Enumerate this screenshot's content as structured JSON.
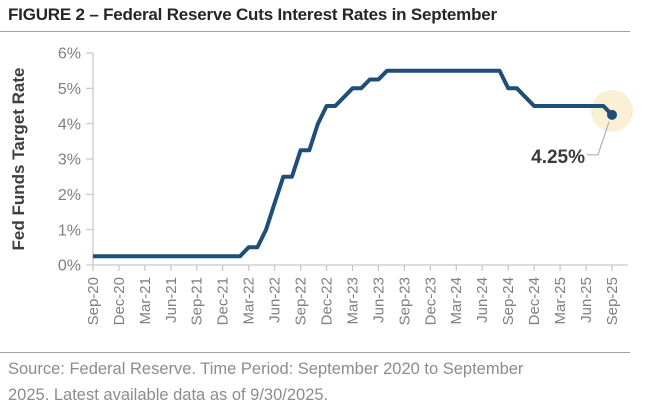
{
  "figure": {
    "title": "FIGURE 2 – Federal Reserve Cuts Interest Rates in September",
    "source_note_lines": [
      "Source: Federal Reserve. Time Period: September 2020 to September",
      "2025. Latest available data as of 9/30/2025."
    ]
  },
  "chart_data": {
    "type": "line",
    "title": "",
    "xlabel": "",
    "ylabel": "Fed Funds Target Rate",
    "ylim": [
      0,
      6
    ],
    "grid": false,
    "legend": false,
    "y_tick_labels": [
      "0%",
      "1%",
      "2%",
      "3%",
      "4%",
      "5%",
      "6%"
    ],
    "x_tick_labels": [
      "Sep-20",
      "Dec-20",
      "Mar-21",
      "Jun-21",
      "Sep-21",
      "Dec-21",
      "Mar-22",
      "Jun-22",
      "Sep-22",
      "Dec-22",
      "Mar-23",
      "Jun-23",
      "Sep-23",
      "Dec-23",
      "Mar-24",
      "Jun-24",
      "Sep-24",
      "Dec-24",
      "Mar-25",
      "Jun-25",
      "Sep-25"
    ],
    "months_per_point": 1,
    "points_per_x_tick": 3,
    "series": [
      {
        "name": "Fed Funds Target Rate",
        "values": [
          0.25,
          0.25,
          0.25,
          0.25,
          0.25,
          0.25,
          0.25,
          0.25,
          0.25,
          0.25,
          0.25,
          0.25,
          0.25,
          0.25,
          0.25,
          0.25,
          0.25,
          0.25,
          0.5,
          0.5,
          1.0,
          1.75,
          2.5,
          2.5,
          3.25,
          3.25,
          4.0,
          4.5,
          4.5,
          4.75,
          5.0,
          5.0,
          5.25,
          5.25,
          5.5,
          5.5,
          5.5,
          5.5,
          5.5,
          5.5,
          5.5,
          5.5,
          5.5,
          5.5,
          5.5,
          5.5,
          5.5,
          5.5,
          5.0,
          5.0,
          4.75,
          4.5,
          4.5,
          4.5,
          4.5,
          4.5,
          4.5,
          4.5,
          4.5,
          4.5,
          4.25
        ]
      }
    ],
    "annotation": {
      "label": "4.25%",
      "value": 4.25
    },
    "colors": {
      "line": "#1f4e79",
      "marker": "#1f4e79",
      "marker_halo": "#faf0d6",
      "axis": "#c6c6c6",
      "tick_text": "#7f7f7f",
      "axis_title_text": "#3f3f3f",
      "annotation_text": "#3a3a3a",
      "callout_line": "#b0b0b0"
    }
  }
}
